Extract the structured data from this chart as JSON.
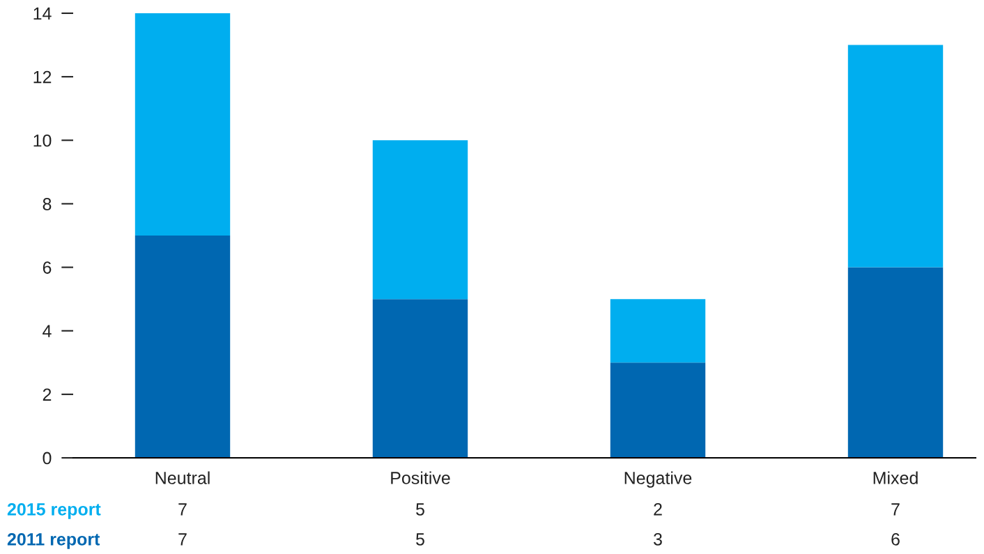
{
  "chart_data": {
    "type": "bar",
    "stacked": true,
    "categories": [
      "Neutral",
      "Positive",
      "Negative",
      "Mixed"
    ],
    "series": [
      {
        "name": "2011 report",
        "color": "#0067b1",
        "values": [
          7,
          5,
          3,
          6
        ]
      },
      {
        "name": "2015 report",
        "color": "#00aeef",
        "values": [
          7,
          5,
          2,
          7
        ]
      }
    ],
    "ylim": [
      0,
      14
    ],
    "yticks": [
      0,
      2,
      4,
      6,
      8,
      10,
      12,
      14
    ],
    "grid": false,
    "legend": false,
    "data_labels": true
  }
}
